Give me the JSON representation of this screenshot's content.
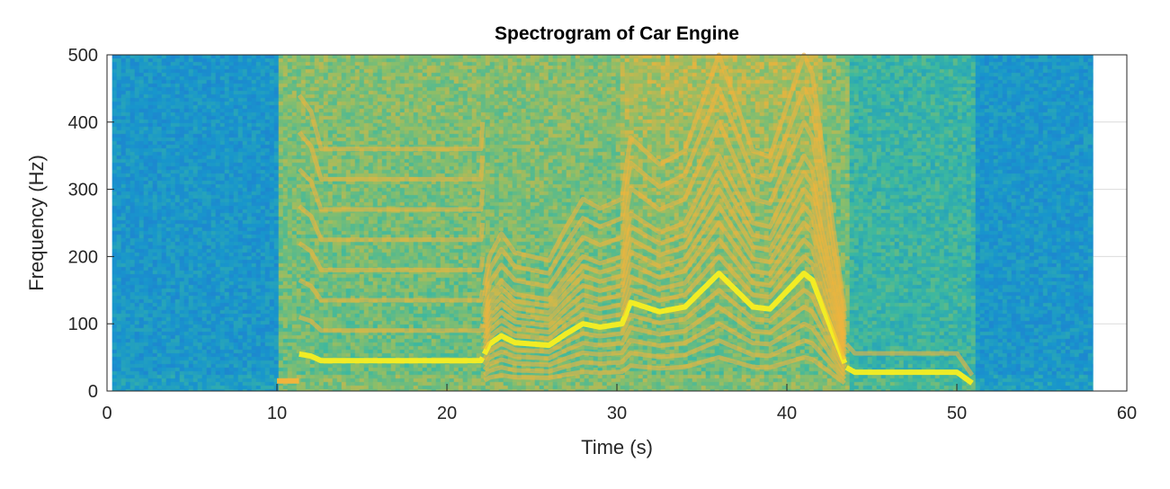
{
  "chart_data": {
    "type": "heatmap",
    "title": "Spectrogram of Car Engine",
    "xlabel": "Time (s)",
    "ylabel": "Frequency (Hz)",
    "xlim": [
      0,
      60
    ],
    "ylim": [
      0,
      500
    ],
    "xticks": [
      "0",
      "10",
      "20",
      "30",
      "40",
      "50",
      "60"
    ],
    "yticks": [
      "0",
      "100",
      "200",
      "300",
      "400",
      "500"
    ],
    "grid": true,
    "colormap": "parula",
    "data_time_range": [
      0.3,
      58
    ],
    "engine_on_interval": [
      10,
      43.5
    ],
    "idle_interval": [
      43.5,
      51
    ],
    "dominant_line": [
      [
        10,
        15
      ],
      [
        11,
        15
      ],
      [
        11.3,
        55
      ],
      [
        12,
        52
      ],
      [
        12.6,
        45
      ],
      [
        22,
        45
      ],
      [
        22.5,
        70
      ],
      [
        23.2,
        82
      ],
      [
        24,
        72
      ],
      [
        26,
        68
      ],
      [
        27,
        85
      ],
      [
        28,
        100
      ],
      [
        29,
        95
      ],
      [
        30.3,
        100
      ],
      [
        30.8,
        132
      ],
      [
        32.5,
        118
      ],
      [
        34,
        125
      ],
      [
        36,
        175
      ],
      [
        38,
        125
      ],
      [
        39,
        122
      ],
      [
        41,
        175
      ],
      [
        41.5,
        165
      ],
      [
        43.5,
        35
      ],
      [
        44,
        28
      ],
      [
        50,
        28
      ],
      [
        51,
        10
      ]
    ],
    "harmonic_groups": [
      {
        "t_range": [
          11.3,
          22.2
        ],
        "ratios": [
          1,
          2,
          3,
          4,
          5,
          6,
          7,
          8
        ]
      },
      {
        "t_range": [
          22.2,
          43.5
        ],
        "ratios": [
          0.286,
          0.429,
          0.571,
          0.714,
          0.857,
          1,
          1.143,
          1.286,
          1.429,
          1.571,
          1.714,
          1.857,
          2,
          2.286,
          2.571,
          2.857
        ]
      },
      {
        "t_range": [
          43.5,
          51
        ],
        "ratios": [
          1,
          2
        ]
      }
    ],
    "colors": {
      "low": "#1a8fcc",
      "mid": "#40b896",
      "high": "#f2b43c",
      "peak": "#f9ee20"
    }
  }
}
